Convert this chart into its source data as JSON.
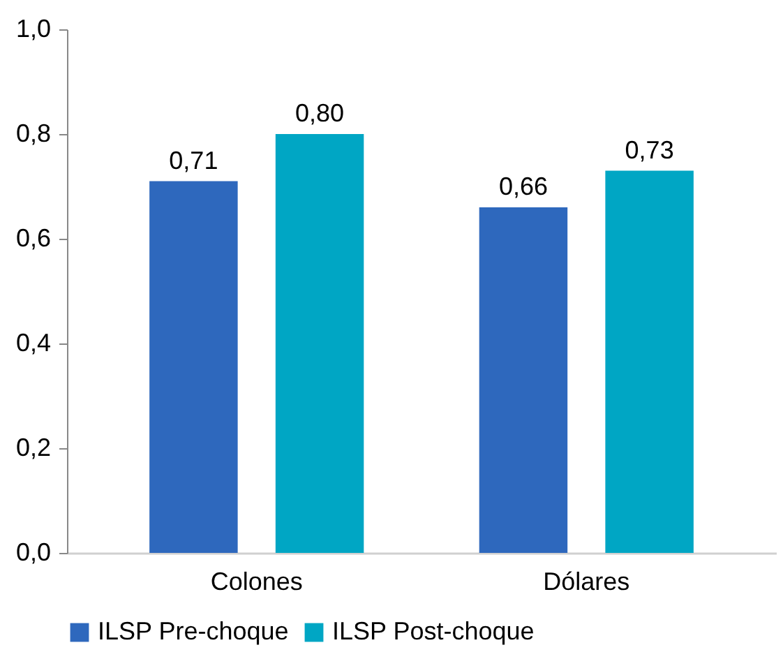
{
  "chart_data": {
    "type": "bar",
    "categories": [
      "Colones",
      "Dólares"
    ],
    "series": [
      {
        "name": "ILSP Pre-choque",
        "color": "#2e68bd",
        "values": [
          0.71,
          0.66
        ],
        "value_labels": [
          "0,71",
          "0,66"
        ]
      },
      {
        "name": "ILSP Post-choque",
        "color": "#00a6c4",
        "values": [
          0.8,
          0.73
        ],
        "value_labels": [
          "0,80",
          "0,73"
        ]
      }
    ],
    "ylim": [
      0,
      1
    ],
    "yticks": [
      {
        "value": 0,
        "label": "0,0"
      },
      {
        "value": 0.2,
        "label": "0,2"
      },
      {
        "value": 0.4,
        "label": "0,4"
      },
      {
        "value": 0.6,
        "label": "0,6"
      },
      {
        "value": 0.8,
        "label": "0,8"
      },
      {
        "value": 1,
        "label": "1,0"
      }
    ],
    "grid": false,
    "legend": "bottom"
  }
}
